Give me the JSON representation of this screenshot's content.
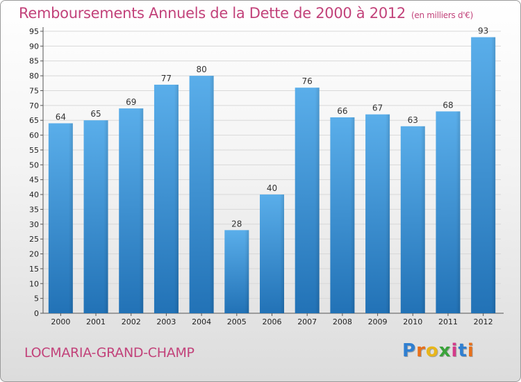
{
  "header": {
    "title": "Remboursements Annuels de la Dette de 2000 à 2012",
    "subtitle": "(en milliers d'€)"
  },
  "footer": {
    "city": "LOCMARIA-GRAND-CHAMP",
    "brand_letters": [
      "P",
      "r",
      "o",
      "x",
      "i",
      "t",
      "i"
    ],
    "brand_colors": [
      "#2f7fd1",
      "#e8701a",
      "#e8b61a",
      "#3aa33a",
      "#d43b8a",
      "#2f7fd1",
      "#e8701a"
    ]
  },
  "chart_data": {
    "type": "bar",
    "categories": [
      "2000",
      "2001",
      "2002",
      "2003",
      "2004",
      "2005",
      "2006",
      "2007",
      "2008",
      "2009",
      "2010",
      "2011",
      "2012"
    ],
    "values": [
      64,
      65,
      69,
      77,
      80,
      28,
      40,
      76,
      66,
      67,
      63,
      68,
      93
    ],
    "ylim": [
      0,
      95
    ],
    "yticks": [
      0,
      5,
      10,
      15,
      20,
      25,
      30,
      35,
      40,
      45,
      50,
      55,
      60,
      65,
      70,
      75,
      80,
      85,
      90,
      95
    ],
    "grid": true,
    "bar_color": "#3a8fd6"
  }
}
